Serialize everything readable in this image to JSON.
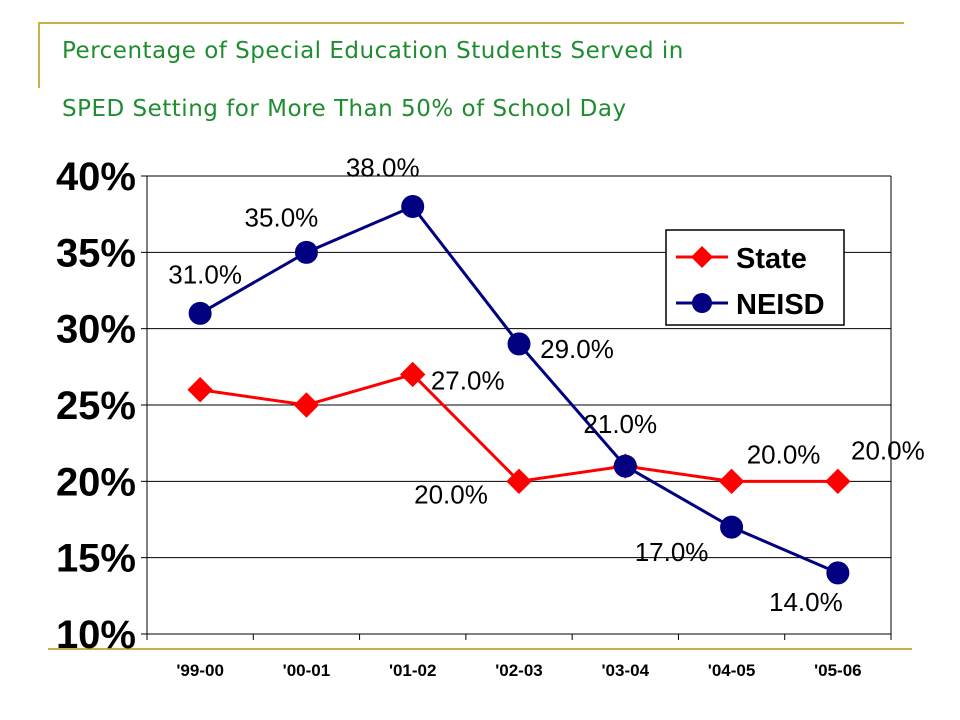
{
  "header": {
    "title_line1": "Percentage of Special Education Students Served in",
    "title_line2": "SPED Setting for More Than 50% of School Day"
  },
  "chart_data": {
    "type": "line",
    "title": "Percentage of Special Education Students Served in SPED Setting for More Than 50% of School Day",
    "xlabel": "",
    "ylabel": "",
    "categories": [
      "'99-00",
      "'00-01",
      "'01-02",
      "'02-03",
      "'03-04",
      "'04-05",
      "'05-06"
    ],
    "ylim": [
      10,
      40
    ],
    "yticks": [
      10,
      15,
      20,
      25,
      30,
      35,
      40
    ],
    "ytick_labels": [
      "10%",
      "15%",
      "20%",
      "25%",
      "30%",
      "35%",
      "40%"
    ],
    "grid": true,
    "legend_position": "right",
    "series": [
      {
        "name": "State",
        "color": "#ff0000",
        "marker": "diamond",
        "values": [
          26,
          25,
          27,
          20,
          21,
          20,
          20
        ],
        "data_labels": [
          null,
          null,
          "27.0%",
          "20.0%",
          null,
          "20.0%",
          "20.0%"
        ]
      },
      {
        "name": "NEISD",
        "color": "#000080",
        "marker": "circle",
        "values": [
          31,
          35,
          38,
          29,
          21,
          17,
          14
        ],
        "data_labels": [
          "31.0%",
          "35.0%",
          "38.0%",
          "29.0%",
          "21.0%",
          "17.0%",
          "14.0%"
        ]
      }
    ]
  }
}
